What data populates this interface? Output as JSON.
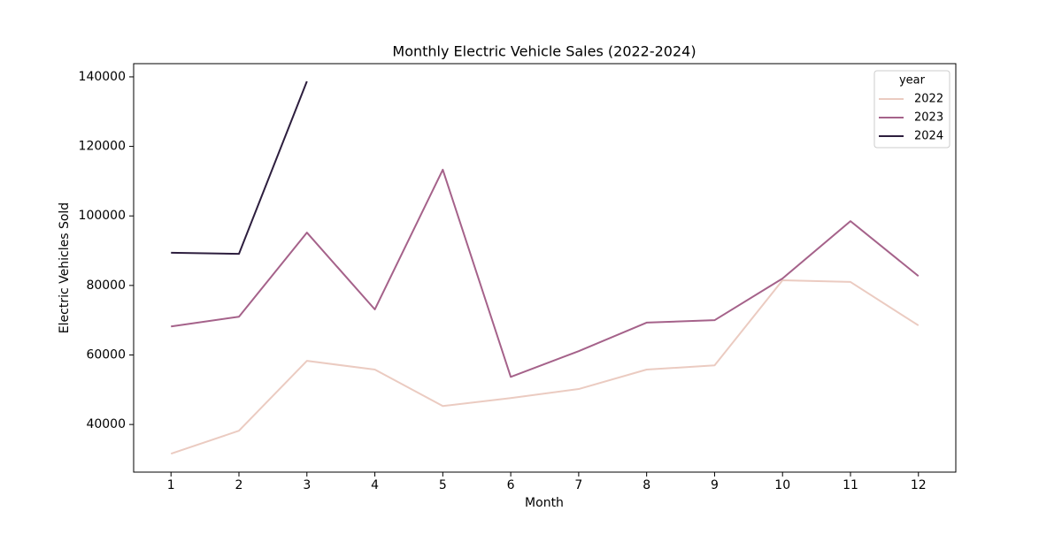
{
  "chart_data": {
    "type": "line",
    "title": "Monthly Electric Vehicle Sales (2022-2024)",
    "xlabel": "Month",
    "ylabel": "Electric Vehicles Sold",
    "x": [
      1,
      2,
      3,
      4,
      5,
      6,
      7,
      8,
      9,
      10,
      11,
      12
    ],
    "series": [
      {
        "name": "2022",
        "color": "#ebcbc1",
        "values": [
          31600,
          38200,
          58300,
          55800,
          45300,
          47600,
          50200,
          55800,
          57000,
          81500,
          81000,
          68500
        ]
      },
      {
        "name": "2023",
        "color": "#a5628a",
        "values": [
          68200,
          71000,
          95200,
          73100,
          113300,
          53700,
          61100,
          69300,
          70000,
          82000,
          98500,
          82700
        ]
      },
      {
        "name": "2024",
        "color": "#2d1e3e",
        "values": [
          89400,
          89100,
          138700,
          null,
          null,
          null,
          null,
          null,
          null,
          null,
          null,
          null
        ]
      }
    ],
    "legend_title": "year",
    "legend": "upper right",
    "xlim": [
      0.45,
      12.55
    ],
    "xticks": [
      1,
      2,
      3,
      4,
      5,
      6,
      7,
      8,
      9,
      10,
      11,
      12
    ],
    "ylim": [
      26300,
      143800
    ],
    "yticks": [
      40000,
      60000,
      80000,
      100000,
      120000,
      140000
    ],
    "grid": false
  }
}
